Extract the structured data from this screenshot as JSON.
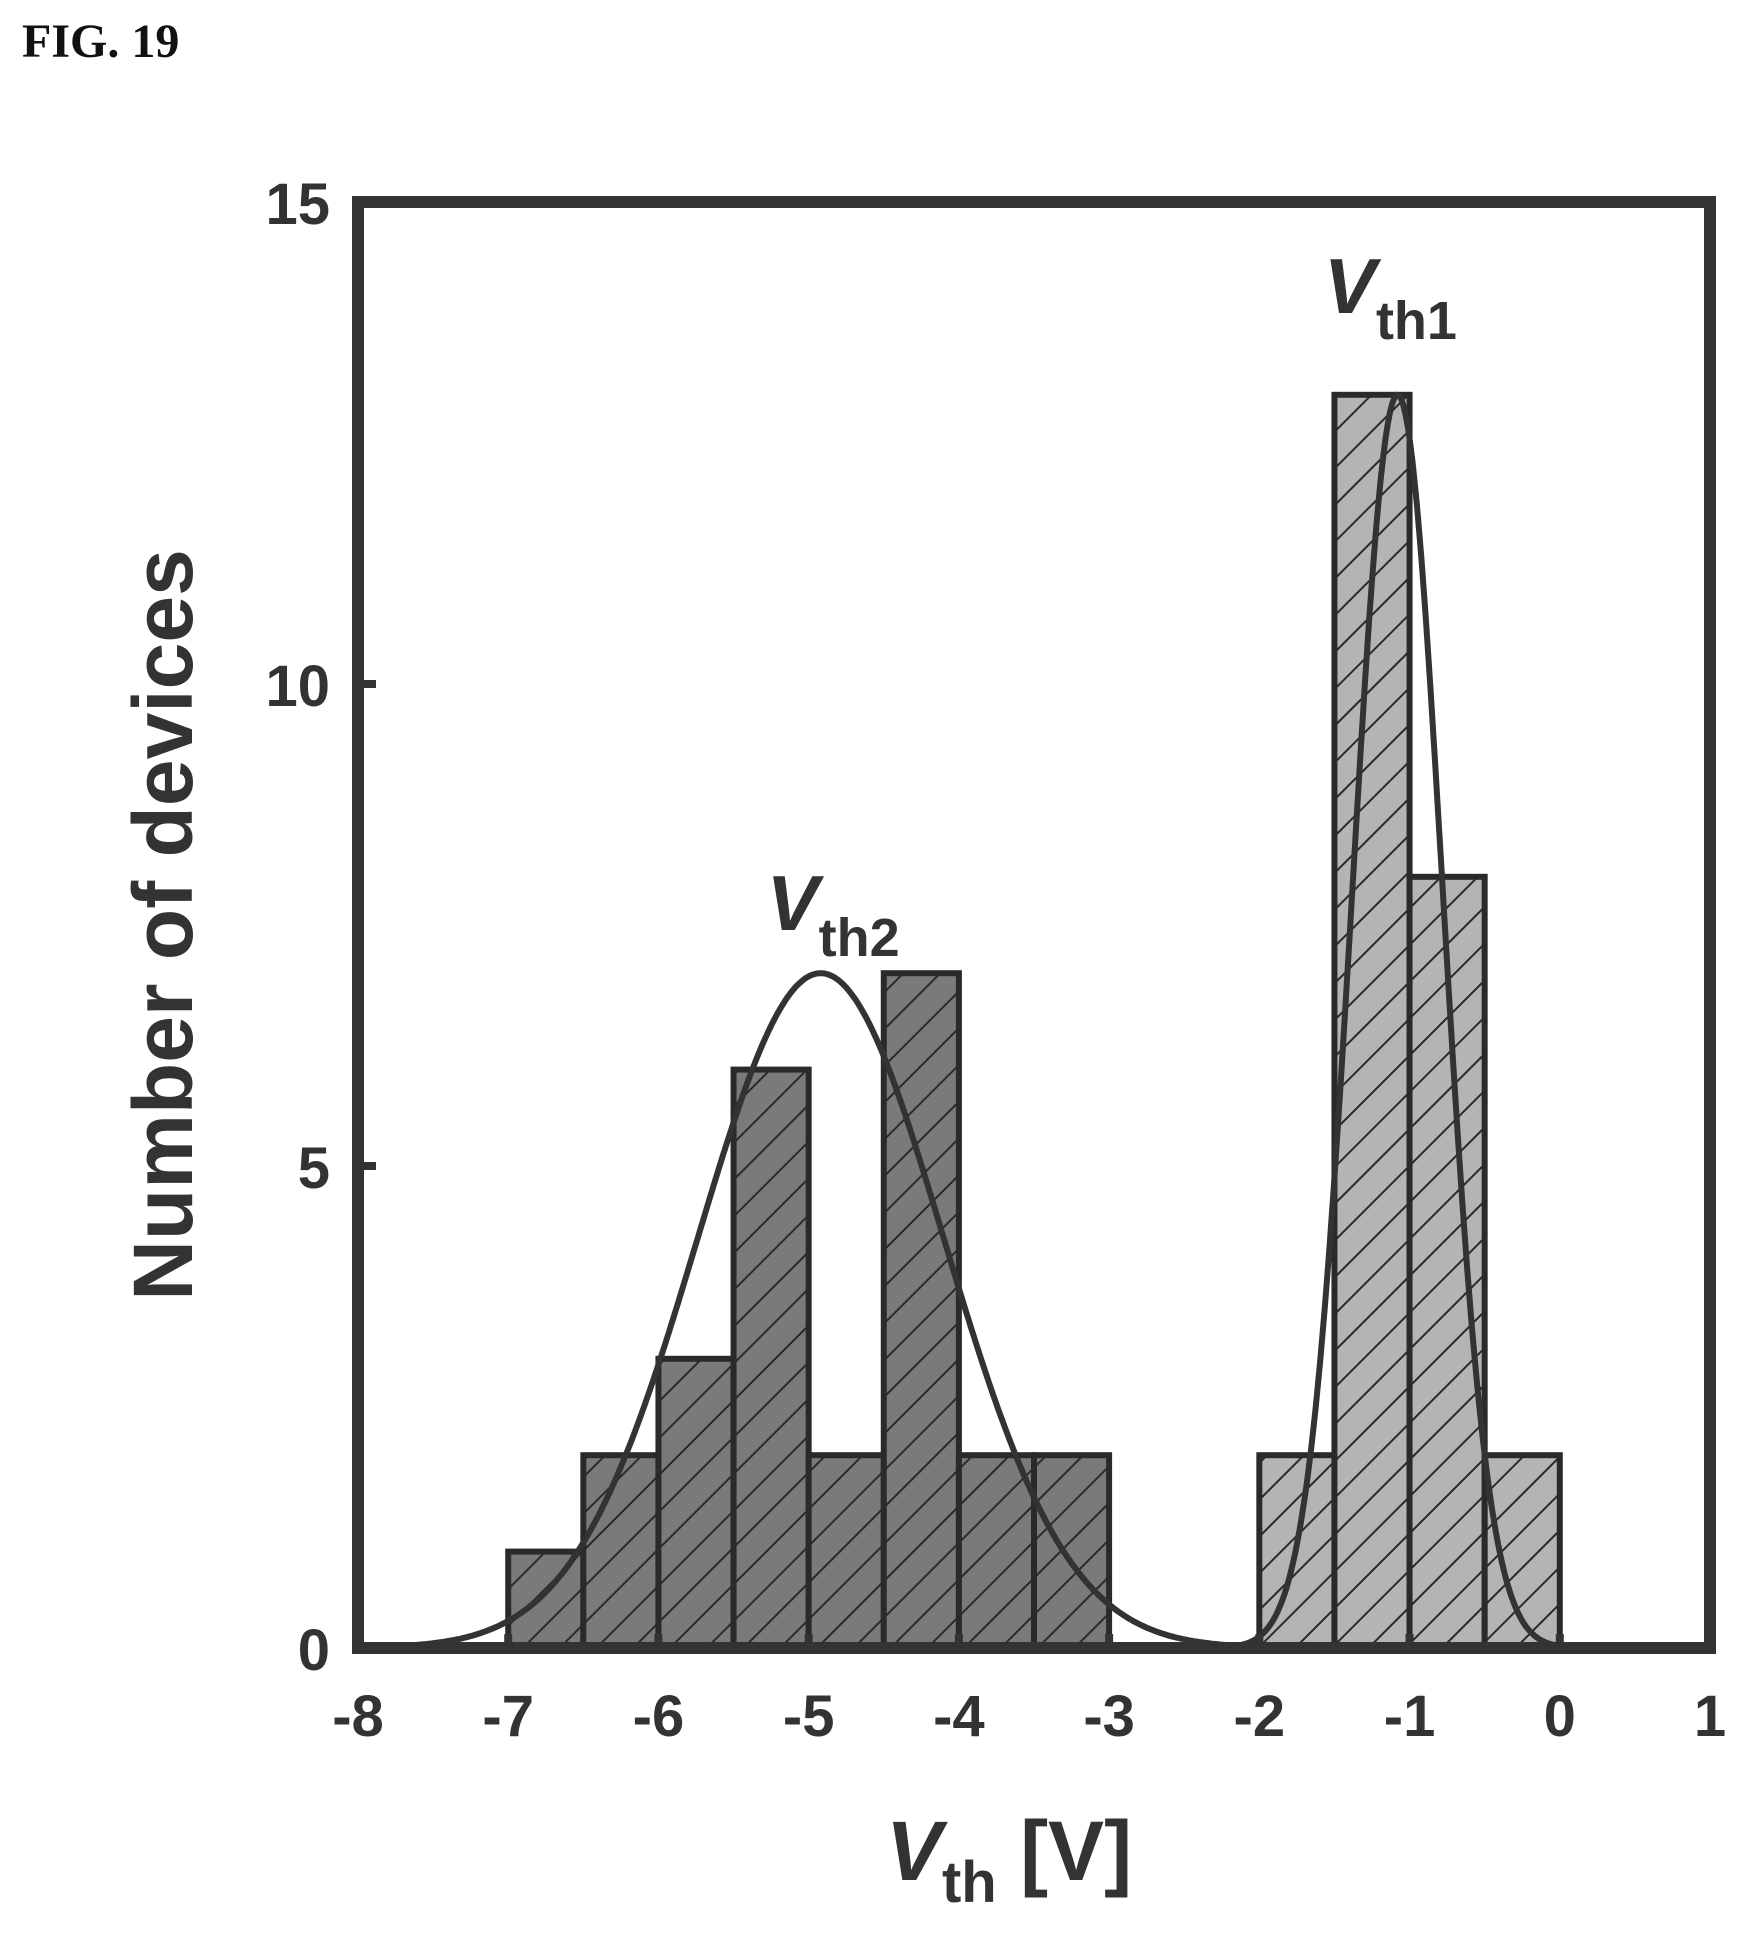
{
  "figure": {
    "label": "FIG. 19"
  },
  "chart_data": {
    "type": "bar",
    "xlabel": {
      "main": "V",
      "sub": "th",
      "rest": " [V]"
    },
    "ylabel": "Number of devices",
    "xlim": [
      -8,
      1
    ],
    "ylim": [
      0,
      15
    ],
    "xticks": [
      "-8",
      "-7",
      "-6",
      "-5",
      "-4",
      "-3",
      "-2",
      "-1",
      "0",
      "1"
    ],
    "yticks": [
      "0",
      "5",
      "10",
      "15"
    ],
    "grid": false,
    "series": [
      {
        "bin_edges": [
          [
            -7.0,
            -6.5
          ],
          [
            -6.5,
            -6.0
          ],
          [
            -6.0,
            -5.5
          ],
          [
            -5.5,
            -5.0
          ],
          [
            -5.0,
            -4.5
          ],
          [
            -4.5,
            -4.0
          ],
          [
            -4.0,
            -3.5
          ],
          [
            -3.5,
            -3.0
          ]
        ],
        "values": [
          1,
          2,
          3,
          6,
          2,
          7,
          2,
          2
        ],
        "color": "#7a7a7a",
        "fit": {
          "type": "gaussian",
          "center": -4.92,
          "sigma": 0.82,
          "amplitude": 7.0
        }
      },
      {
        "bin_edges": [
          [
            -2.0,
            -1.5
          ],
          [
            -1.5,
            -1.0
          ],
          [
            -1.0,
            -0.5
          ],
          [
            -0.5,
            0.0
          ]
        ],
        "values": [
          2,
          13,
          8,
          2
        ],
        "color": "#b4b4b4",
        "fit": {
          "type": "gaussian",
          "center": -1.08,
          "sigma": 0.3,
          "amplitude": 13.0
        }
      }
    ],
    "annotations": [
      {
        "main": "V",
        "sub": "th2",
        "x": -5.28,
        "y": 7.45
      },
      {
        "main": "V",
        "sub": "th1",
        "x": -1.57,
        "y": 13.85
      }
    ]
  }
}
